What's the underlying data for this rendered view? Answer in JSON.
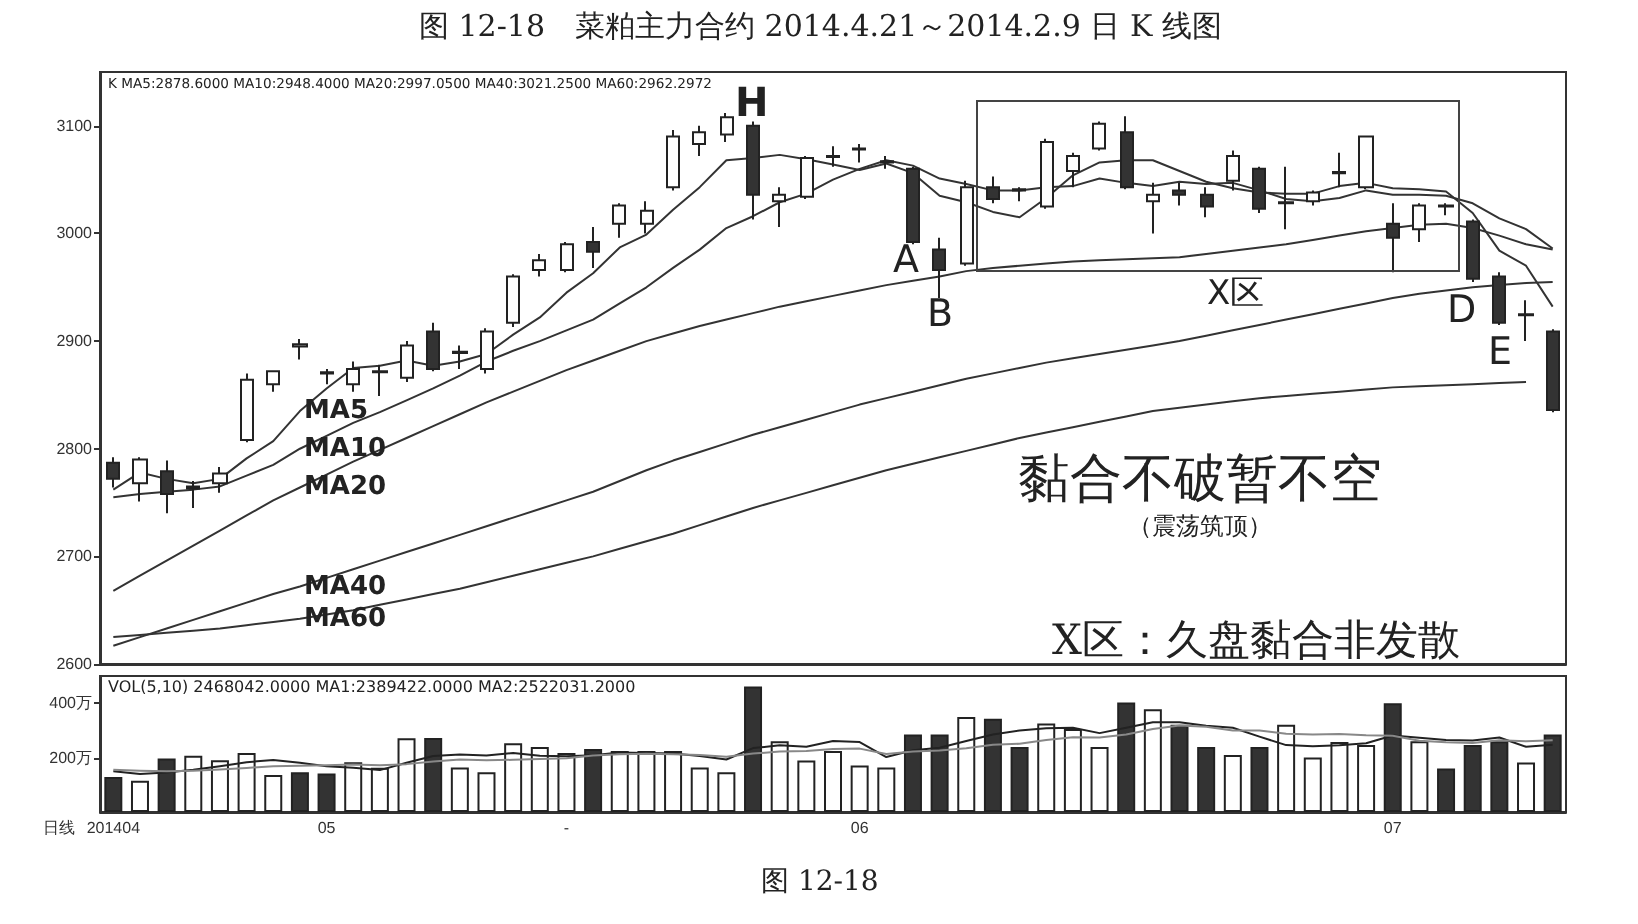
{
  "chart_data": [
    {
      "type": "candlestick",
      "title": "图 12-18　菜粕主力合约 2014.4.21～2014.2.9 日 K 线图",
      "categories": [
        null,
        null,
        null,
        null,
        null,
        null,
        null,
        null,
        null,
        null,
        null,
        null,
        null,
        null,
        null,
        null,
        null,
        null,
        null,
        null,
        null,
        null,
        null,
        null,
        null,
        null,
        null,
        null,
        null,
        null,
        null,
        null,
        null,
        null,
        null,
        null,
        null,
        null,
        null,
        null,
        null,
        null,
        null,
        null,
        null,
        null,
        null,
        null,
        null,
        null,
        null,
        null,
        null,
        null,
        null
      ],
      "ohlc": [
        [
          2787,
          2792,
          2764,
          2772
        ],
        [
          2768,
          2792,
          2751,
          2790
        ],
        [
          2779,
          2789,
          2740,
          2758
        ],
        [
          2763,
          2770,
          2745,
          2765
        ],
        [
          2768,
          2783,
          2759,
          2777
        ],
        [
          2808,
          2870,
          2806,
          2864
        ],
        [
          2860,
          2872,
          2853,
          2872
        ],
        [
          2895,
          2902,
          2883,
          2897
        ],
        [
          2871,
          2874,
          2860,
          2870
        ],
        [
          2860,
          2881,
          2853,
          2874
        ],
        [
          2871,
          2878,
          2849,
          2872
        ],
        [
          2866,
          2900,
          2862,
          2896
        ],
        [
          2909,
          2917,
          2872,
          2874
        ],
        [
          2889,
          2896,
          2874,
          2890
        ],
        [
          2874,
          2912,
          2870,
          2909
        ],
        [
          2917,
          2962,
          2913,
          2960
        ],
        [
          2966,
          2981,
          2960,
          2975
        ],
        [
          2966,
          2992,
          2964,
          2990
        ],
        [
          2992,
          3006,
          2968,
          2983
        ],
        [
          3009,
          3028,
          2996,
          3026
        ],
        [
          3009,
          3030,
          3000,
          3021
        ],
        [
          3043,
          3096,
          3040,
          3090
        ],
        [
          3083,
          3100,
          3072,
          3094
        ],
        [
          3092,
          3112,
          3085,
          3108
        ],
        [
          3100,
          3104,
          3013,
          3036
        ],
        [
          3030,
          3043,
          3006,
          3036
        ],
        [
          3034,
          3072,
          3032,
          3070
        ],
        [
          3071,
          3081,
          3062,
          3072
        ],
        [
          3078,
          3083,
          3066,
          3079
        ],
        [
          3067,
          3072,
          3060,
          3066
        ],
        [
          3060,
          3062,
          2990,
          2992
        ],
        [
          2985,
          2996,
          2940,
          2966
        ],
        [
          2972,
          3049,
          2970,
          3043
        ],
        [
          3043,
          3053,
          3028,
          3032
        ],
        [
          3041,
          3043,
          3030,
          3040
        ],
        [
          3025,
          3088,
          3023,
          3085
        ],
        [
          3058,
          3075,
          3043,
          3072
        ],
        [
          3079,
          3104,
          3077,
          3102
        ],
        [
          3094,
          3109,
          3041,
          3043
        ],
        [
          3030,
          3047,
          3000,
          3036
        ],
        [
          3040,
          3047,
          3026,
          3036
        ],
        [
          3036,
          3043,
          3015,
          3025
        ],
        [
          3049,
          3077,
          3040,
          3072
        ],
        [
          3060,
          3062,
          3019,
          3023
        ],
        [
          3029,
          3062,
          3004,
          3028
        ],
        [
          3030,
          3040,
          3026,
          3038
        ],
        [
          3056,
          3075,
          3043,
          3057
        ],
        [
          3043,
          3090,
          3041,
          3090
        ],
        [
          3009,
          3028,
          2964,
          2996
        ],
        [
          3004,
          3028,
          2992,
          3026
        ],
        [
          3026,
          3028,
          3017,
          3025
        ],
        [
          3011,
          3013,
          2955,
          2958
        ],
        [
          2960,
          2964,
          2915,
          2917
        ],
        [
          2924,
          2938,
          2900,
          2925
        ],
        [
          2909,
          2911,
          2834,
          2836
        ]
      ],
      "series": [
        {
          "type": "line",
          "name": "MA5",
          "color": "#333333",
          "values": [
            2762,
            2778,
            2772,
            2768,
            2772,
            2791,
            2807,
            2835,
            2856,
            2875,
            2877,
            2882,
            2877,
            2881,
            2888,
            2906,
            2922,
            2945,
            2963,
            2987,
            2999,
            3022,
            3043,
            3068,
            3070,
            3073,
            3069,
            3064,
            3059,
            3065,
            3056,
            3035,
            3029,
            3020,
            3015,
            3033,
            3054,
            3066,
            3068,
            3068,
            3058,
            3048,
            3042,
            3038,
            3037,
            3037,
            3044,
            3047,
            3042,
            3041,
            3039,
            3019,
            2984,
            2970,
            2932
          ]
        },
        {
          "type": "line",
          "name": "MA10",
          "color": "#333333",
          "values": [
            2755,
            2758,
            2760,
            2762,
            2765,
            2775,
            2785,
            2800,
            2812,
            2824,
            2834,
            2845,
            2856,
            2868,
            2881,
            2891,
            2900,
            2910,
            2920,
            2935,
            2950,
            2968,
            2985,
            3005,
            3016,
            3029,
            3037,
            3050,
            3060,
            3068,
            3063,
            3051,
            3046,
            3040,
            3040,
            3043,
            3044,
            3051,
            3047,
            3044,
            3048,
            3046,
            3047,
            3040,
            3032,
            3030,
            3033,
            3040,
            3036,
            3036,
            3035,
            3028,
            3014,
            3004,
            2986
          ]
        },
        {
          "type": "line",
          "name": "MA20",
          "color": "#333333",
          "values": [
            2668,
            2682,
            2696,
            2710,
            2724,
            2738,
            2752,
            2764,
            2776,
            2788,
            2799,
            2810,
            2821,
            2832,
            2843,
            2853,
            2863,
            2873,
            2882,
            2891,
            2900,
            2907,
            2914,
            2920,
            2926,
            2932,
            2937,
            2942,
            2947,
            2952,
            2956,
            2960,
            2965,
            2968,
            2970,
            2972,
            2974,
            2975,
            2976,
            2977,
            2978,
            2981,
            2984,
            2987,
            2990,
            2994,
            2998,
            3002,
            3005,
            3008,
            3009,
            3005,
            2998,
            2990,
            2985
          ]
        },
        {
          "type": "line",
          "name": "MA40",
          "color": "#333333",
          "values": [
            2617,
            2625,
            2633,
            2641,
            2649,
            2657,
            2665,
            2672,
            2680,
            2688,
            2696,
            2704,
            2712,
            2720,
            2728,
            2736,
            2744,
            2752,
            2760,
            2770,
            2780,
            2789,
            2797,
            2805,
            2813,
            2820,
            2827,
            2834,
            2841,
            2847,
            2853,
            2859,
            2865,
            2870,
            2875,
            2880,
            2884,
            2888,
            2892,
            2896,
            2900,
            2905,
            2910,
            2915,
            2920,
            2925,
            2930,
            2935,
            2940,
            2944,
            2947,
            2950,
            2952,
            2954,
            2955
          ]
        },
        {
          "type": "line",
          "name": "MA60",
          "color": "#333333",
          "values": [
            2625,
            2627,
            2629,
            2631,
            2633,
            2636,
            2639,
            2642,
            2646,
            2650,
            2655,
            2660,
            2665,
            2670,
            2676,
            2682,
            2688,
            2694,
            2700,
            2707,
            2714,
            2721,
            2729,
            2737,
            2745,
            2752,
            2759,
            2766,
            2773,
            2780,
            2786,
            2792,
            2798,
            2804,
            2810,
            2815,
            2820,
            2825,
            2830,
            2835,
            2838,
            2841,
            2844,
            2847,
            2849,
            2851,
            2853,
            2855,
            2857,
            2858,
            2859,
            2860,
            2861,
            2862,
            null
          ]
        }
      ],
      "marker": "none",
      "ylim": [
        2600,
        3150
      ],
      "yticks": [
        2600,
        2700,
        2800,
        2900,
        3000,
        3100
      ],
      "tick_labels": "y",
      "annotations": [
        "K  MA5:2878.6000 MA10:2948.4000 MA20:2997.0500 MA40:3021.2500 MA60:2962.2972",
        "H",
        "A",
        "B",
        "X区",
        "D",
        "E",
        "黏合不破暂不空",
        "（震荡筑顶）",
        "X区：久盘黏合非发散"
      ]
    },
    {
      "type": "bar",
      "xlabel": "日线",
      "categories": [
        "201404",
        null,
        null,
        null,
        null,
        null,
        null,
        null,
        "05",
        null,
        null,
        null,
        null,
        null,
        null,
        null,
        null,
        "-",
        null,
        null,
        null,
        null,
        null,
        null,
        null,
        null,
        null,
        null,
        "06",
        null,
        null,
        null,
        null,
        null,
        null,
        null,
        null,
        null,
        null,
        null,
        null,
        null,
        null,
        null,
        null,
        null,
        null,
        null,
        "07",
        null,
        null,
        null,
        null,
        null,
        null
      ],
      "series": [
        {
          "type": "bar",
          "values": [
            129,
            115,
            197,
            207,
            190,
            217,
            136,
            146,
            142,
            183,
            163,
            271,
            272,
            164,
            146,
            253,
            239,
            217,
            232,
            224,
            224,
            224,
            164,
            146,
            461,
            260,
            189,
            224,
            171,
            164,
            285,
            285,
            349,
            343,
            239,
            325,
            305,
            239,
            403,
            378,
            321,
            239,
            210,
            239,
            321,
            200,
            257,
            246,
            400,
            260,
            160,
            246,
            260,
            182,
            285
          ],
          "colors": [
            "#333333",
            "#ffffff",
            "#333333",
            "#ffffff",
            "#ffffff",
            "#ffffff",
            "#ffffff",
            "#333333",
            "#333333",
            "#ffffff",
            "#ffffff",
            "#ffffff",
            "#333333",
            "#ffffff",
            "#ffffff",
            "#ffffff",
            "#ffffff",
            "#ffffff",
            "#333333",
            "#ffffff",
            "#ffffff",
            "#ffffff",
            "#ffffff",
            "#ffffff",
            "#333333",
            "#ffffff",
            "#ffffff",
            "#ffffff",
            "#ffffff",
            "#ffffff",
            "#333333",
            "#333333",
            "#ffffff",
            "#333333",
            "#333333",
            "#ffffff",
            "#ffffff",
            "#ffffff",
            "#333333",
            "#ffffff",
            "#333333",
            "#333333",
            "#ffffff",
            "#333333",
            "#ffffff",
            "#ffffff",
            "#ffffff",
            "#ffffff",
            "#333333",
            "#ffffff",
            "#333333",
            "#333333",
            "#333333",
            "#ffffff",
            "#333333"
          ]
        },
        {
          "type": "line",
          "color": "#222222",
          "values": [
            150,
            140,
            145,
            155,
            168,
            183,
            191,
            181,
            168,
            163,
            154,
            181,
            206,
            211,
            208,
            217,
            207,
            205,
            209,
            219,
            217,
            215,
            206,
            193,
            235,
            245,
            240,
            261,
            257,
            202,
            227,
            236,
            261,
            285,
            300,
            308,
            310,
            290,
            310,
            330,
            330,
            317,
            310,
            277,
            246,
            242,
            245,
            253,
            281,
            273,
            265,
            263,
            274,
            240,
            247
          ]
        },
        {
          "type": "line",
          "color": "#888888",
          "values": [
            155,
            152,
            150,
            152,
            156,
            162,
            168,
            170,
            172,
            175,
            172,
            176,
            186,
            193,
            190,
            192,
            195,
            198,
            208,
            212,
            214,
            212,
            210,
            203,
            215,
            222,
            224,
            232,
            233,
            213,
            222,
            226,
            234,
            247,
            251,
            265,
            275,
            274,
            285,
            305,
            318,
            313,
            300,
            300,
            288,
            285,
            287,
            282,
            280,
            262,
            256,
            254,
            264,
            260,
            264
          ]
        }
      ],
      "marker": "none",
      "ylim": [
        0,
        500
      ],
      "yticks": [
        {
          "value": 200,
          "label": "200万"
        },
        {
          "value": 400,
          "label": "400万"
        }
      ],
      "annotations": [
        "VOL(5,10) 2468042.0000 MA1:2389422.0000 MA2:2522031.2000",
        "图 12-18"
      ]
    }
  ]
}
